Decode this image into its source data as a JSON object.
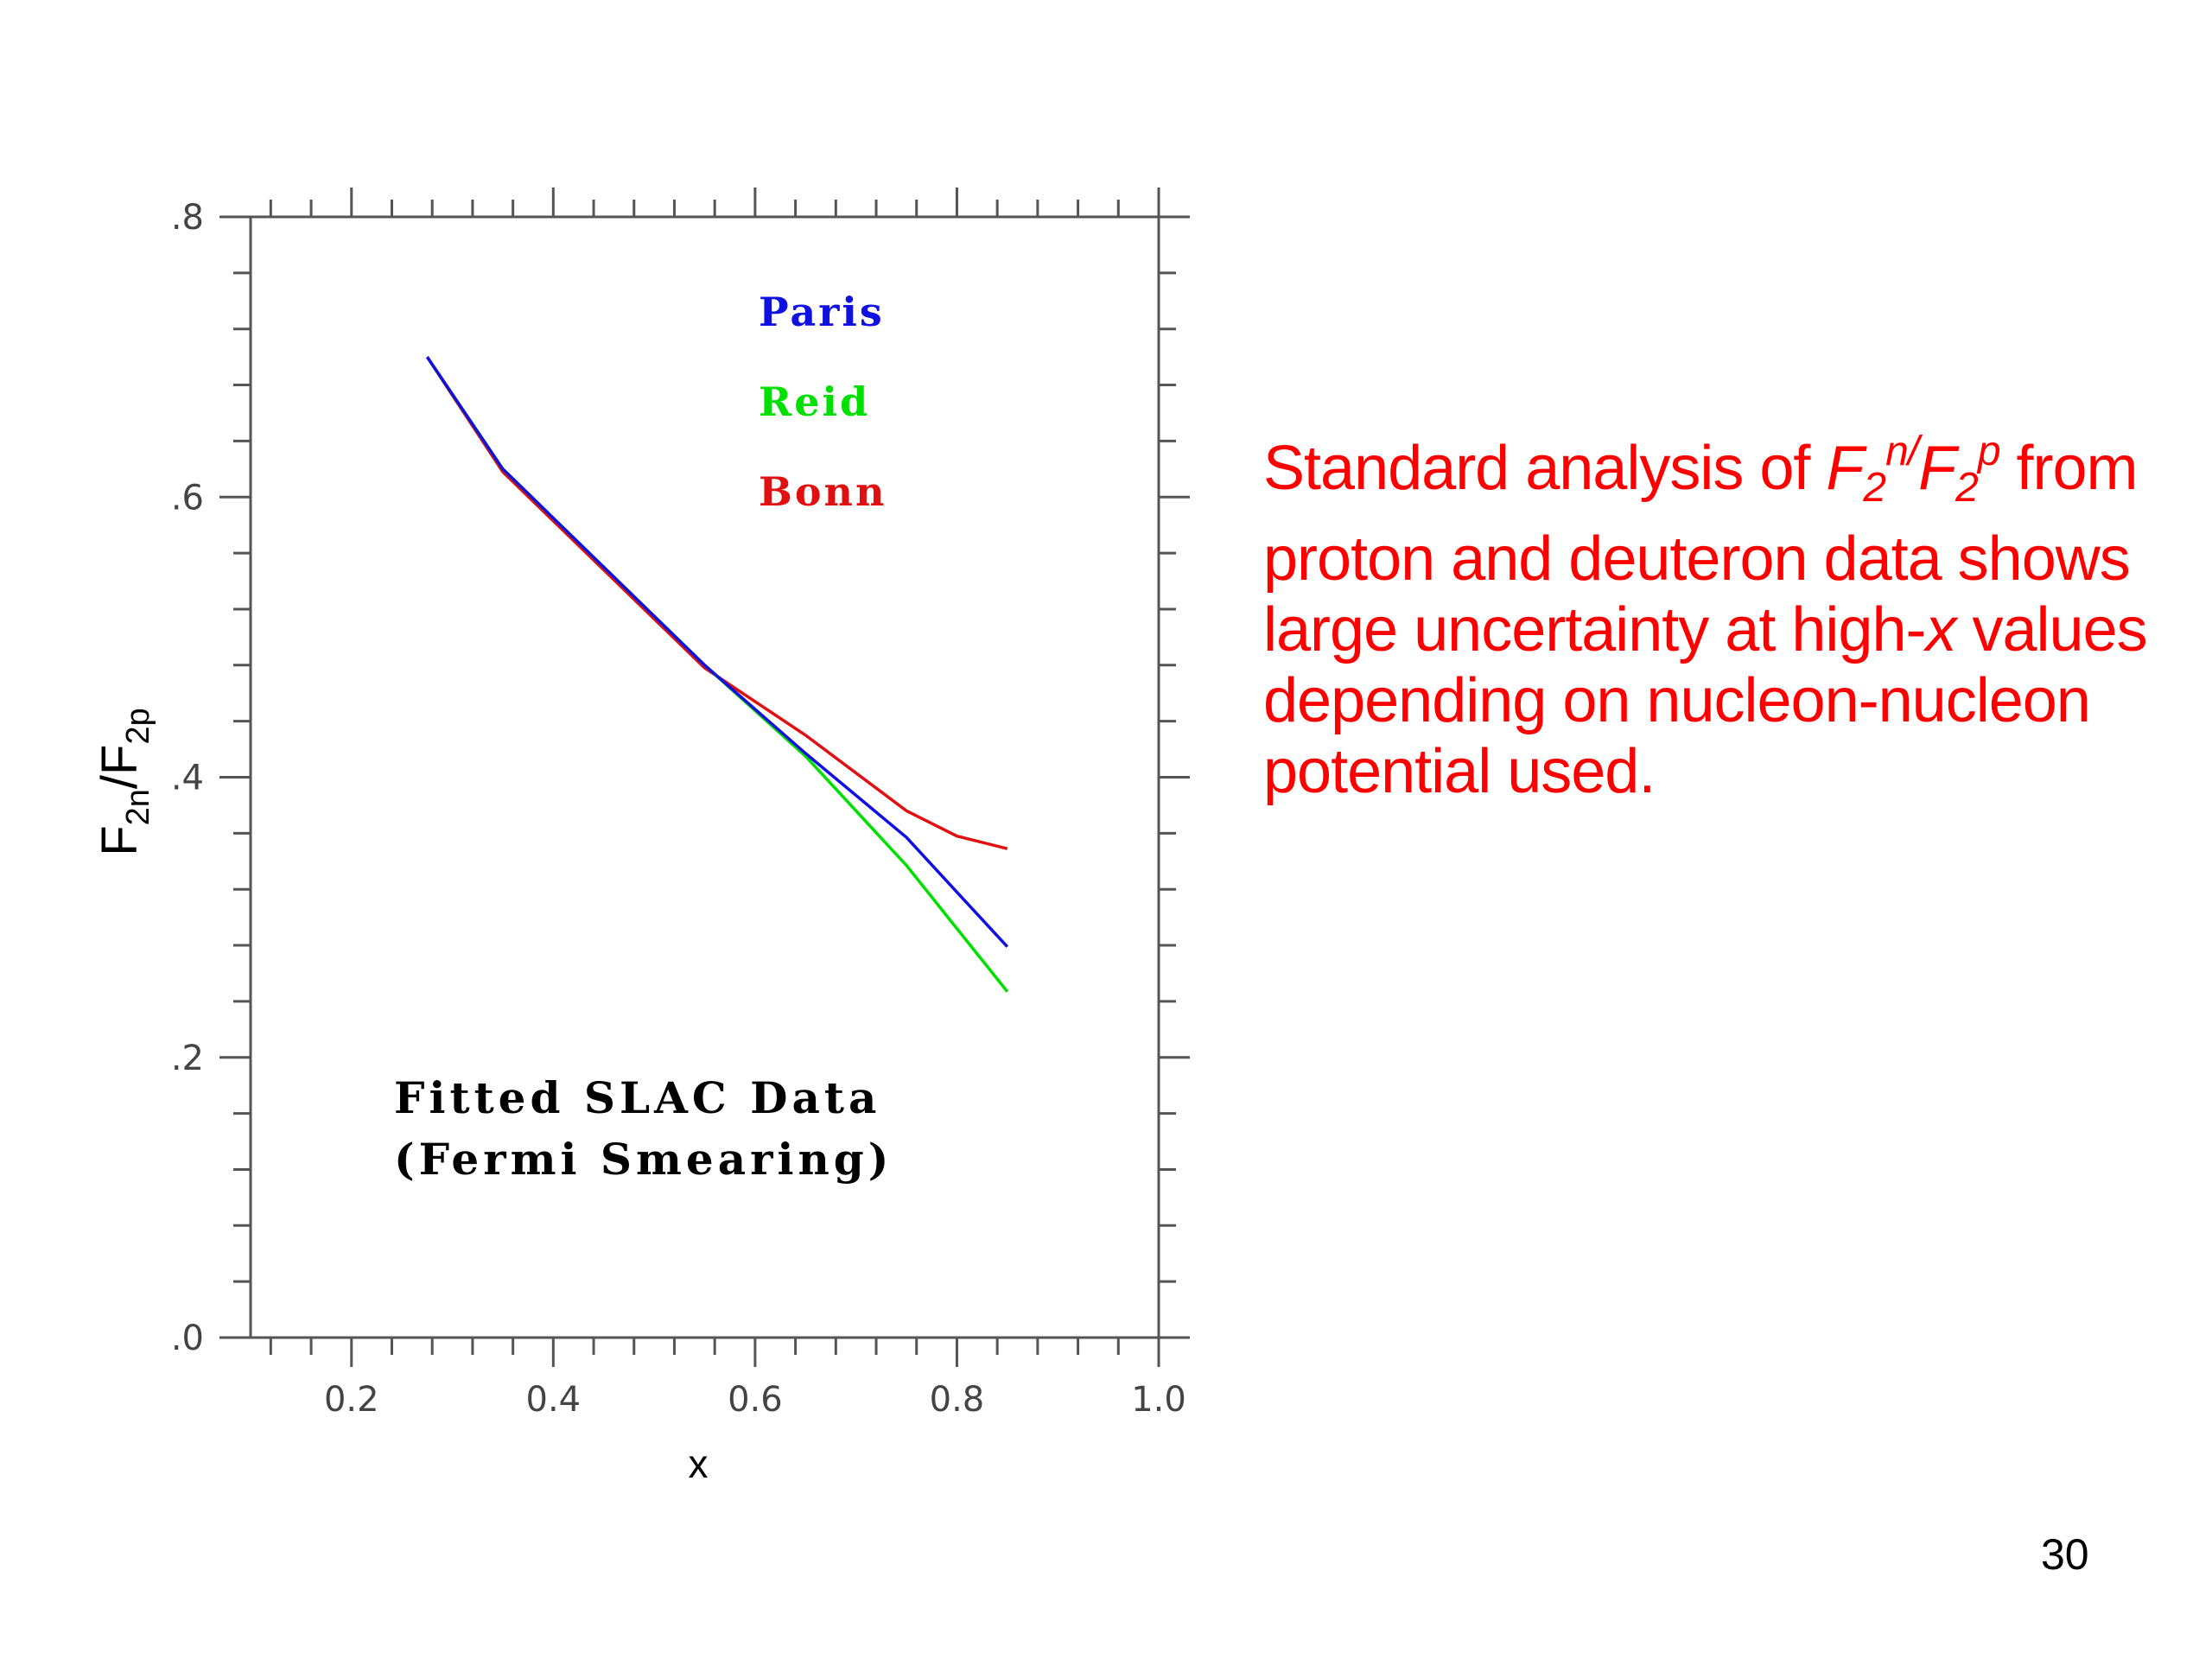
{
  "chart_data": {
    "type": "line",
    "xlabel": "x",
    "ylabel": {
      "base1": "F",
      "sub1": "2n",
      "slash": "/",
      "base2": "F",
      "sub2": "2p"
    },
    "xlim": [
      0.1,
      1.0
    ],
    "ylim": [
      0.0,
      0.8
    ],
    "xticks": [
      0.2,
      0.4,
      0.6,
      0.8,
      1.0
    ],
    "xtick_labels": [
      "0.2",
      "0.4",
      "0.6",
      "0.8",
      "1.0"
    ],
    "yticks": [
      0.0,
      0.2,
      0.4,
      0.6,
      0.8
    ],
    "ytick_labels": [
      ".0",
      ".2",
      ".4",
      ".6",
      ".8"
    ],
    "grid": false,
    "legend_placement": "top-center",
    "annotation": [
      "Fitted SLAC Data",
      "(Fermi Smearing)"
    ],
    "x": [
      0.275,
      0.35,
      0.55,
      0.65,
      0.75,
      0.8,
      0.85
    ],
    "series": [
      {
        "name": "Paris",
        "color": "#1010e0",
        "values": [
          0.7,
          0.62,
          0.48,
          0.417,
          0.357,
          0.318,
          0.279
        ]
      },
      {
        "name": "Reid",
        "color": "#00e000",
        "values": [
          0.7,
          0.62,
          0.48,
          0.415,
          0.337,
          0.292,
          0.247
        ]
      },
      {
        "name": "Bonn",
        "color": "#e01010",
        "values": [
          0.7,
          0.618,
          0.478,
          0.43,
          0.376,
          0.358,
          0.349
        ]
      }
    ]
  },
  "description": {
    "line1": {
      "pre": "Standard analysis of ",
      "F1": "F",
      "s1": "2",
      "n": "n/",
      "F2": "F",
      "s2": "2",
      "p": "p",
      "post": " from"
    },
    "line2": "proton and deuteron data shows",
    "line3": {
      "pre": "large uncertainty at high-",
      "x": "x",
      "post": " values"
    },
    "line4": "depending on nucleon-nucleon",
    "line5": "potential used."
  },
  "page_number": "30"
}
